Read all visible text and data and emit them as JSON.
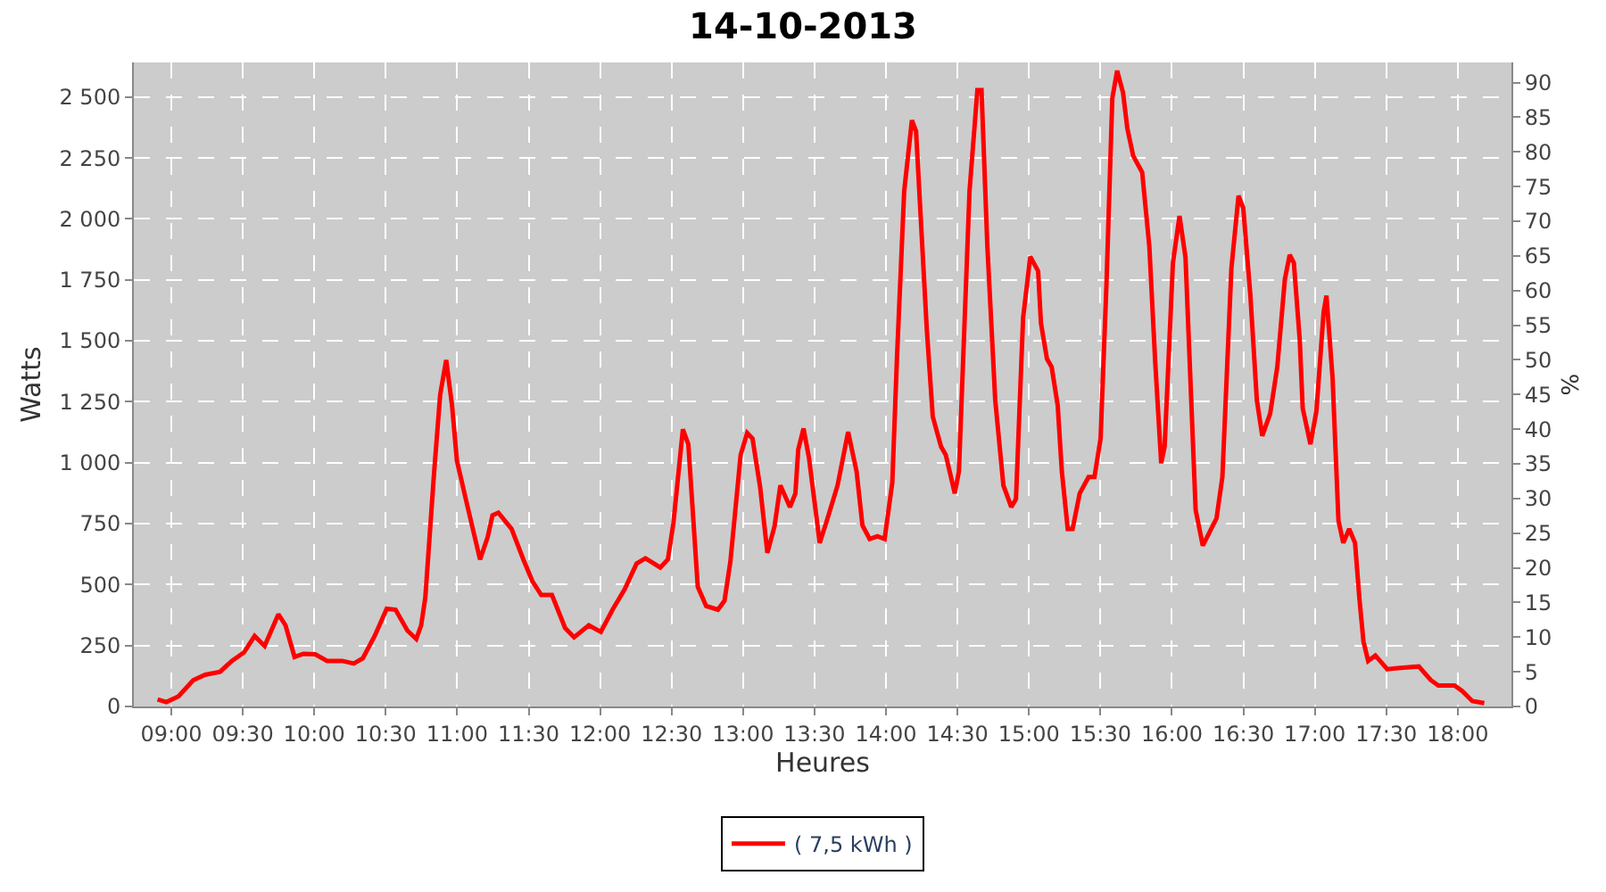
{
  "chart_data": {
    "type": "line",
    "title": "14-10-2013",
    "xlabel": "Heures",
    "ylabel": "Watts",
    "y2label": "%",
    "x": [
      8.904,
      8.966,
      9.05,
      9.154,
      9.237,
      9.341,
      9.424,
      9.508,
      9.583,
      9.653,
      9.749,
      9.799,
      9.862,
      9.924,
      10.007,
      10.09,
      10.195,
      10.277,
      10.34,
      10.423,
      10.507,
      10.569,
      10.652,
      10.714,
      10.748,
      10.777,
      10.839,
      10.881,
      10.923,
      10.964,
      10.998,
      11.069,
      11.16,
      11.213,
      11.247,
      11.288,
      11.381,
      11.463,
      11.526,
      11.588,
      11.663,
      11.755,
      11.818,
      11.921,
      12.005,
      12.087,
      12.171,
      12.255,
      12.317,
      12.421,
      12.474,
      12.512,
      12.579,
      12.617,
      12.683,
      12.742,
      12.824,
      12.87,
      12.911,
      12.983,
      13.029,
      13.066,
      13.12,
      13.17,
      13.22,
      13.261,
      13.328,
      13.366,
      13.386,
      13.423,
      13.461,
      13.536,
      13.586,
      13.661,
      13.735,
      13.794,
      13.835,
      13.885,
      13.94,
      13.99,
      14.044,
      14.077,
      14.127,
      14.181,
      14.21,
      14.285,
      14.327,
      14.385,
      14.418,
      14.481,
      14.51,
      14.584,
      14.639,
      14.668,
      14.709,
      14.764,
      14.821,
      14.876,
      14.909,
      14.959,
      15.009,
      15.064,
      15.084,
      15.126,
      15.159,
      15.201,
      15.23,
      15.271,
      15.305,
      15.355,
      15.417,
      15.458,
      15.501,
      15.542,
      15.583,
      15.617,
      15.658,
      15.688,
      15.729,
      15.792,
      15.842,
      15.883,
      15.925,
      15.949,
      16.007,
      16.053,
      16.095,
      16.166,
      16.216,
      16.312,
      16.353,
      16.416,
      16.466,
      16.499,
      16.549,
      16.594,
      16.632,
      16.687,
      16.737,
      16.79,
      16.824,
      16.853,
      16.894,
      16.915,
      16.969,
      17.011,
      17.061,
      17.081,
      17.124,
      17.165,
      17.199,
      17.24,
      17.281,
      17.311,
      17.34,
      17.373,
      17.423,
      17.506,
      17.581,
      17.727,
      17.811,
      17.864,
      17.977,
      18.031,
      18.102,
      18.185
    ],
    "series": [
      {
        "name": "( 7,5 kWh )",
        "color": "#ff0000",
        "values": [
          29,
          18,
          41,
          108,
          130,
          142,
          187,
          221,
          289,
          248,
          378,
          333,
          203,
          216,
          214,
          187,
          187,
          176,
          198,
          289,
          401,
          397,
          311,
          277,
          333,
          446,
          964,
          1279,
          1421,
          1235,
          1009,
          829,
          603,
          694,
          784,
          795,
          728,
          603,
          514,
          457,
          457,
          322,
          284,
          333,
          306,
          397,
          480,
          586,
          608,
          570,
          603,
          750,
          1137,
          1076,
          491,
          412,
          397,
          434,
          593,
          1032,
          1122,
          1099,
          897,
          630,
          739,
          907,
          818,
          874,
          1054,
          1140,
          1020,
          671,
          762,
          907,
          1126,
          964,
          743,
          687,
          698,
          687,
          919,
          1437,
          2113,
          2405,
          2360,
          1549,
          1189,
          1066,
          1032,
          874,
          964,
          2113,
          2529,
          2529,
          1887,
          1257,
          907,
          818,
          851,
          1595,
          1845,
          1786,
          1572,
          1426,
          1392,
          1235,
          964,
          728,
          728,
          874,
          941,
          941,
          1099,
          1730,
          2495,
          2608,
          2518,
          2372,
          2259,
          2191,
          1887,
          1414,
          998,
          1066,
          1820,
          2012,
          1843,
          806,
          660,
          772,
          941,
          1797,
          2095,
          2045,
          1685,
          1257,
          1110,
          1201,
          1392,
          1752,
          1853,
          1820,
          1505,
          1223,
          1076,
          1212,
          1617,
          1685,
          1347,
          762,
          671,
          728,
          671,
          446,
          266,
          187,
          209,
          153,
          157,
          164,
          108,
          86,
          86,
          63,
          22,
          14
        ]
      }
    ],
    "xlim": [
      8.738,
      18.375
    ],
    "xticks": [
      {
        "value": 9,
        "label": "09:00"
      },
      {
        "value": 9.5,
        "label": "09:30"
      },
      {
        "value": 10,
        "label": "10:00"
      },
      {
        "value": 10.5,
        "label": "10:30"
      },
      {
        "value": 11,
        "label": "11:00"
      },
      {
        "value": 11.5,
        "label": "11:30"
      },
      {
        "value": 12,
        "label": "12:00"
      },
      {
        "value": 12.5,
        "label": "12:30"
      },
      {
        "value": 13,
        "label": "13:00"
      },
      {
        "value": 13.5,
        "label": "13:30"
      },
      {
        "value": 14,
        "label": "14:00"
      },
      {
        "value": 14.5,
        "label": "14:30"
      },
      {
        "value": 15,
        "label": "15:00"
      },
      {
        "value": 15.5,
        "label": "15:30"
      },
      {
        "value": 16,
        "label": "16:00"
      },
      {
        "value": 16.5,
        "label": "16:30"
      },
      {
        "value": 17,
        "label": "17:00"
      },
      {
        "value": 17.5,
        "label": "17:30"
      },
      {
        "value": 18,
        "label": "18:00"
      }
    ],
    "ylim": [
      0,
      2642
    ],
    "yticks": [
      0,
      250,
      500,
      750,
      {
        "value": 1000,
        "label": "1 000"
      },
      {
        "value": 1250,
        "label": "1 250"
      },
      {
        "value": 1500,
        "label": "1 500"
      },
      {
        "value": 1750,
        "label": "1 750"
      },
      {
        "value": 2000,
        "label": "2 000"
      },
      {
        "value": 2250,
        "label": "2 250"
      },
      {
        "value": 2500,
        "label": "2 500"
      }
    ],
    "y2lim": [
      0,
      92.9
    ],
    "y2ticks": [
      0,
      5,
      10,
      15,
      20,
      25,
      30,
      35,
      40,
      45,
      50,
      55,
      60,
      65,
      70,
      75,
      80,
      85,
      90
    ],
    "grid": true,
    "legend": "bottom",
    "marker": "none",
    "line_style": "solid"
  }
}
